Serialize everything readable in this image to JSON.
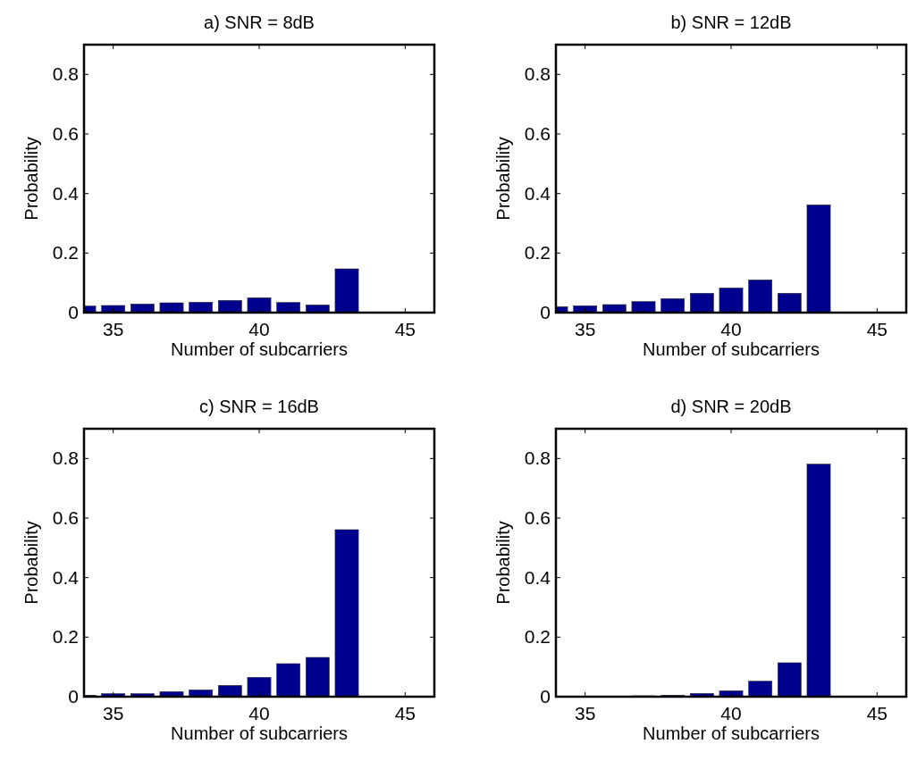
{
  "chart_data": [
    {
      "type": "bar",
      "title": "a) SNR = 8dB",
      "xlabel": "Number of subcarriers",
      "ylabel": "Probability",
      "x": [
        34,
        35,
        36,
        37,
        38,
        39,
        40,
        41,
        42,
        43
      ],
      "values": [
        0.022,
        0.024,
        0.029,
        0.033,
        0.035,
        0.041,
        0.05,
        0.034,
        0.026,
        0.147
      ],
      "color": "#00008f",
      "xlim": [
        34,
        46
      ],
      "xticks": [
        35,
        40,
        45
      ],
      "ylim": [
        0,
        0.9
      ],
      "yticks": [
        0,
        0.2,
        0.4,
        0.6,
        0.8
      ]
    },
    {
      "type": "bar",
      "title": "b) SNR = 12dB",
      "xlabel": "Number of subcarriers",
      "ylabel": "Probability",
      "x": [
        34,
        35,
        36,
        37,
        38,
        39,
        40,
        41,
        42,
        43
      ],
      "values": [
        0.02,
        0.023,
        0.027,
        0.037,
        0.047,
        0.065,
        0.083,
        0.11,
        0.065,
        0.362
      ],
      "color": "#00008f",
      "xlim": [
        34,
        46
      ],
      "xticks": [
        35,
        40,
        45
      ],
      "ylim": [
        0,
        0.9
      ],
      "yticks": [
        0,
        0.2,
        0.4,
        0.6,
        0.8
      ]
    },
    {
      "type": "bar",
      "title": "c) SNR = 16dB",
      "xlabel": "Number of subcarriers",
      "ylabel": "Probability",
      "x": [
        34,
        35,
        36,
        37,
        38,
        39,
        40,
        41,
        42,
        43
      ],
      "values": [
        0.005,
        0.01,
        0.01,
        0.017,
        0.023,
        0.038,
        0.065,
        0.111,
        0.132,
        0.561
      ],
      "color": "#00008f",
      "xlim": [
        34,
        46
      ],
      "xticks": [
        35,
        40,
        45
      ],
      "ylim": [
        0,
        0.9
      ],
      "yticks": [
        0,
        0.2,
        0.4,
        0.6,
        0.8
      ]
    },
    {
      "type": "bar",
      "title": "d) SNR = 20dB",
      "xlabel": "Number of subcarriers",
      "ylabel": "Probability",
      "x": [
        34,
        35,
        36,
        37,
        38,
        39,
        40,
        41,
        42,
        43
      ],
      "values": [
        0,
        0.001,
        0.002,
        0.003,
        0.005,
        0.011,
        0.02,
        0.052,
        0.114,
        0.781
      ],
      "color": "#00008f",
      "xlim": [
        34,
        46
      ],
      "xticks": [
        35,
        40,
        45
      ],
      "ylim": [
        0,
        0.9
      ],
      "yticks": [
        0,
        0.2,
        0.4,
        0.6,
        0.8
      ]
    }
  ]
}
